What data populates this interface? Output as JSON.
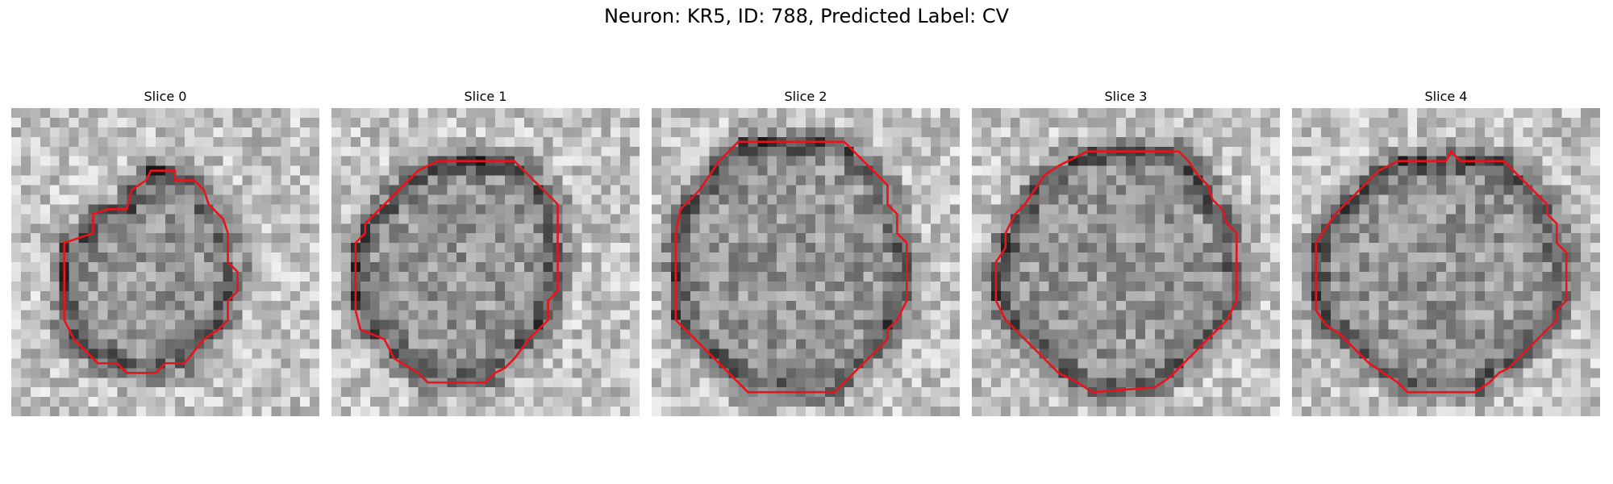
{
  "figure": {
    "title": "Neuron: KR5, ID: 788, Predicted Label: CV"
  },
  "panels": [
    {
      "title": "Slice 0",
      "seed": 11,
      "contour": [
        [
          17.0,
          7.5
        ],
        [
          19.0,
          7.5
        ],
        [
          20.0,
          8.5
        ],
        [
          20.5,
          10.0
        ],
        [
          22.0,
          11.5
        ],
        [
          22.5,
          13.0
        ],
        [
          22.5,
          16.0
        ],
        [
          23.5,
          17.0
        ],
        [
          23.5,
          19.0
        ],
        [
          22.5,
          20.0
        ],
        [
          22.5,
          22.0
        ],
        [
          21.5,
          23.0
        ],
        [
          20.0,
          24.0
        ],
        [
          18.0,
          26.5
        ],
        [
          16.0,
          26.5
        ],
        [
          15.0,
          27.5
        ],
        [
          12.0,
          27.5
        ],
        [
          11.0,
          26.5
        ],
        [
          9.0,
          26.5
        ],
        [
          8.0,
          25.5
        ],
        [
          6.5,
          24.0
        ],
        [
          5.5,
          22.0
        ],
        [
          5.5,
          14.0
        ],
        [
          8.5,
          13.0
        ],
        [
          8.5,
          11.0
        ],
        [
          10.0,
          10.5
        ],
        [
          12.0,
          10.5
        ],
        [
          12.5,
          8.5
        ],
        [
          14.0,
          7.5
        ],
        [
          14.5,
          6.5
        ],
        [
          17.0,
          6.5
        ]
      ]
    },
    {
      "title": "Slice 1",
      "seed": 23,
      "contour": [
        [
          11.0,
          5.5
        ],
        [
          19.0,
          5.5
        ],
        [
          23.5,
          10.0
        ],
        [
          23.5,
          19.0
        ],
        [
          22.5,
          20.0
        ],
        [
          22.5,
          22.0
        ],
        [
          21.5,
          23.0
        ],
        [
          20.5,
          24.0
        ],
        [
          19.0,
          26.0
        ],
        [
          18.0,
          27.0
        ],
        [
          17.0,
          27.5
        ],
        [
          16.0,
          28.5
        ],
        [
          10.0,
          28.5
        ],
        [
          9.0,
          27.5
        ],
        [
          6.5,
          26.0
        ],
        [
          5.5,
          24.0
        ],
        [
          3.0,
          23.0
        ],
        [
          2.5,
          21.0
        ],
        [
          2.5,
          14.0
        ],
        [
          3.5,
          13.0
        ],
        [
          3.5,
          12.0
        ],
        [
          5.0,
          10.5
        ],
        [
          6.0,
          9.5
        ],
        [
          8.0,
          7.5
        ],
        [
          9.0,
          6.5
        ]
      ]
    },
    {
      "title": "Slice 2",
      "seed": 37,
      "contour": [
        [
          9.0,
          3.5
        ],
        [
          20.0,
          3.5
        ],
        [
          21.0,
          4.5
        ],
        [
          22.0,
          5.5
        ],
        [
          23.5,
          7.0
        ],
        [
          24.5,
          8.0
        ],
        [
          24.5,
          10.0
        ],
        [
          25.5,
          11.0
        ],
        [
          25.5,
          13.0
        ],
        [
          26.5,
          14.0
        ],
        [
          26.5,
          20.0
        ],
        [
          25.5,
          22.0
        ],
        [
          24.5,
          23.0
        ],
        [
          24.5,
          24.0
        ],
        [
          23.5,
          25.0
        ],
        [
          22.5,
          26.0
        ],
        [
          21.5,
          27.0
        ],
        [
          20.0,
          28.5
        ],
        [
          19.0,
          29.5
        ],
        [
          10.0,
          29.5
        ],
        [
          9.0,
          28.5
        ],
        [
          7.5,
          27.0
        ],
        [
          6.0,
          25.5
        ],
        [
          4.5,
          24.0
        ],
        [
          2.5,
          22.0
        ],
        [
          2.5,
          13.0
        ],
        [
          3.0,
          10.5
        ],
        [
          4.0,
          9.5
        ],
        [
          5.0,
          8.5
        ],
        [
          6.0,
          7.0
        ],
        [
          7.0,
          5.5
        ],
        [
          8.0,
          4.5
        ]
      ]
    },
    {
      "title": "Slice 3",
      "seed": 53,
      "contour": [
        [
          12.0,
          4.5
        ],
        [
          21.5,
          4.5
        ],
        [
          22.5,
          5.5
        ],
        [
          23.5,
          7.0
        ],
        [
          24.5,
          8.0
        ],
        [
          25.0,
          9.5
        ],
        [
          26.0,
          10.5
        ],
        [
          26.5,
          12.0
        ],
        [
          27.5,
          13.0
        ],
        [
          27.5,
          20.0
        ],
        [
          26.5,
          22.0
        ],
        [
          25.5,
          23.0
        ],
        [
          24.5,
          24.0
        ],
        [
          23.5,
          25.0
        ],
        [
          22.5,
          26.0
        ],
        [
          21.5,
          27.0
        ],
        [
          20.5,
          28.0
        ],
        [
          19.0,
          29.0
        ],
        [
          12.5,
          29.5
        ],
        [
          11.0,
          28.5
        ],
        [
          9.0,
          27.5
        ],
        [
          8.0,
          26.5
        ],
        [
          6.5,
          25.0
        ],
        [
          5.0,
          23.5
        ],
        [
          3.5,
          22.0
        ],
        [
          2.5,
          20.0
        ],
        [
          2.5,
          16.0
        ],
        [
          3.5,
          14.5
        ],
        [
          3.5,
          13.0
        ],
        [
          4.5,
          11.0
        ],
        [
          5.5,
          10.0
        ],
        [
          6.5,
          8.5
        ],
        [
          7.5,
          7.0
        ],
        [
          9.0,
          6.0
        ],
        [
          10.0,
          5.5
        ],
        [
          11.0,
          5.0
        ]
      ]
    },
    {
      "title": "Slice 4",
      "seed": 71,
      "contour": [
        [
          12.0,
          5.5
        ],
        [
          16.0,
          5.5
        ],
        [
          16.5,
          4.5
        ],
        [
          17.5,
          5.5
        ],
        [
          22.0,
          5.5
        ],
        [
          23.0,
          6.5
        ],
        [
          24.0,
          7.5
        ],
        [
          25.5,
          9.0
        ],
        [
          26.5,
          10.0
        ],
        [
          26.5,
          11.0
        ],
        [
          27.5,
          12.0
        ],
        [
          27.5,
          14.0
        ],
        [
          28.5,
          15.0
        ],
        [
          28.5,
          20.0
        ],
        [
          27.5,
          21.0
        ],
        [
          27.5,
          22.0
        ],
        [
          26.5,
          23.0
        ],
        [
          25.5,
          24.0
        ],
        [
          24.5,
          25.0
        ],
        [
          23.5,
          26.0
        ],
        [
          22.5,
          27.0
        ],
        [
          21.5,
          27.5
        ],
        [
          20.5,
          28.5
        ],
        [
          19.0,
          29.5
        ],
        [
          12.0,
          29.5
        ],
        [
          11.0,
          28.5
        ],
        [
          9.5,
          27.5
        ],
        [
          8.0,
          26.5
        ],
        [
          6.5,
          25.0
        ],
        [
          5.0,
          23.5
        ],
        [
          3.5,
          22.5
        ],
        [
          2.5,
          21.0
        ],
        [
          2.5,
          14.0
        ],
        [
          3.5,
          12.5
        ],
        [
          4.5,
          11.0
        ],
        [
          5.5,
          10.0
        ],
        [
          7.5,
          8.0
        ],
        [
          9.0,
          6.5
        ],
        [
          11.0,
          5.5
        ]
      ]
    }
  ],
  "colors": {
    "contour": "#e8141c",
    "colormap": "grayscale"
  }
}
